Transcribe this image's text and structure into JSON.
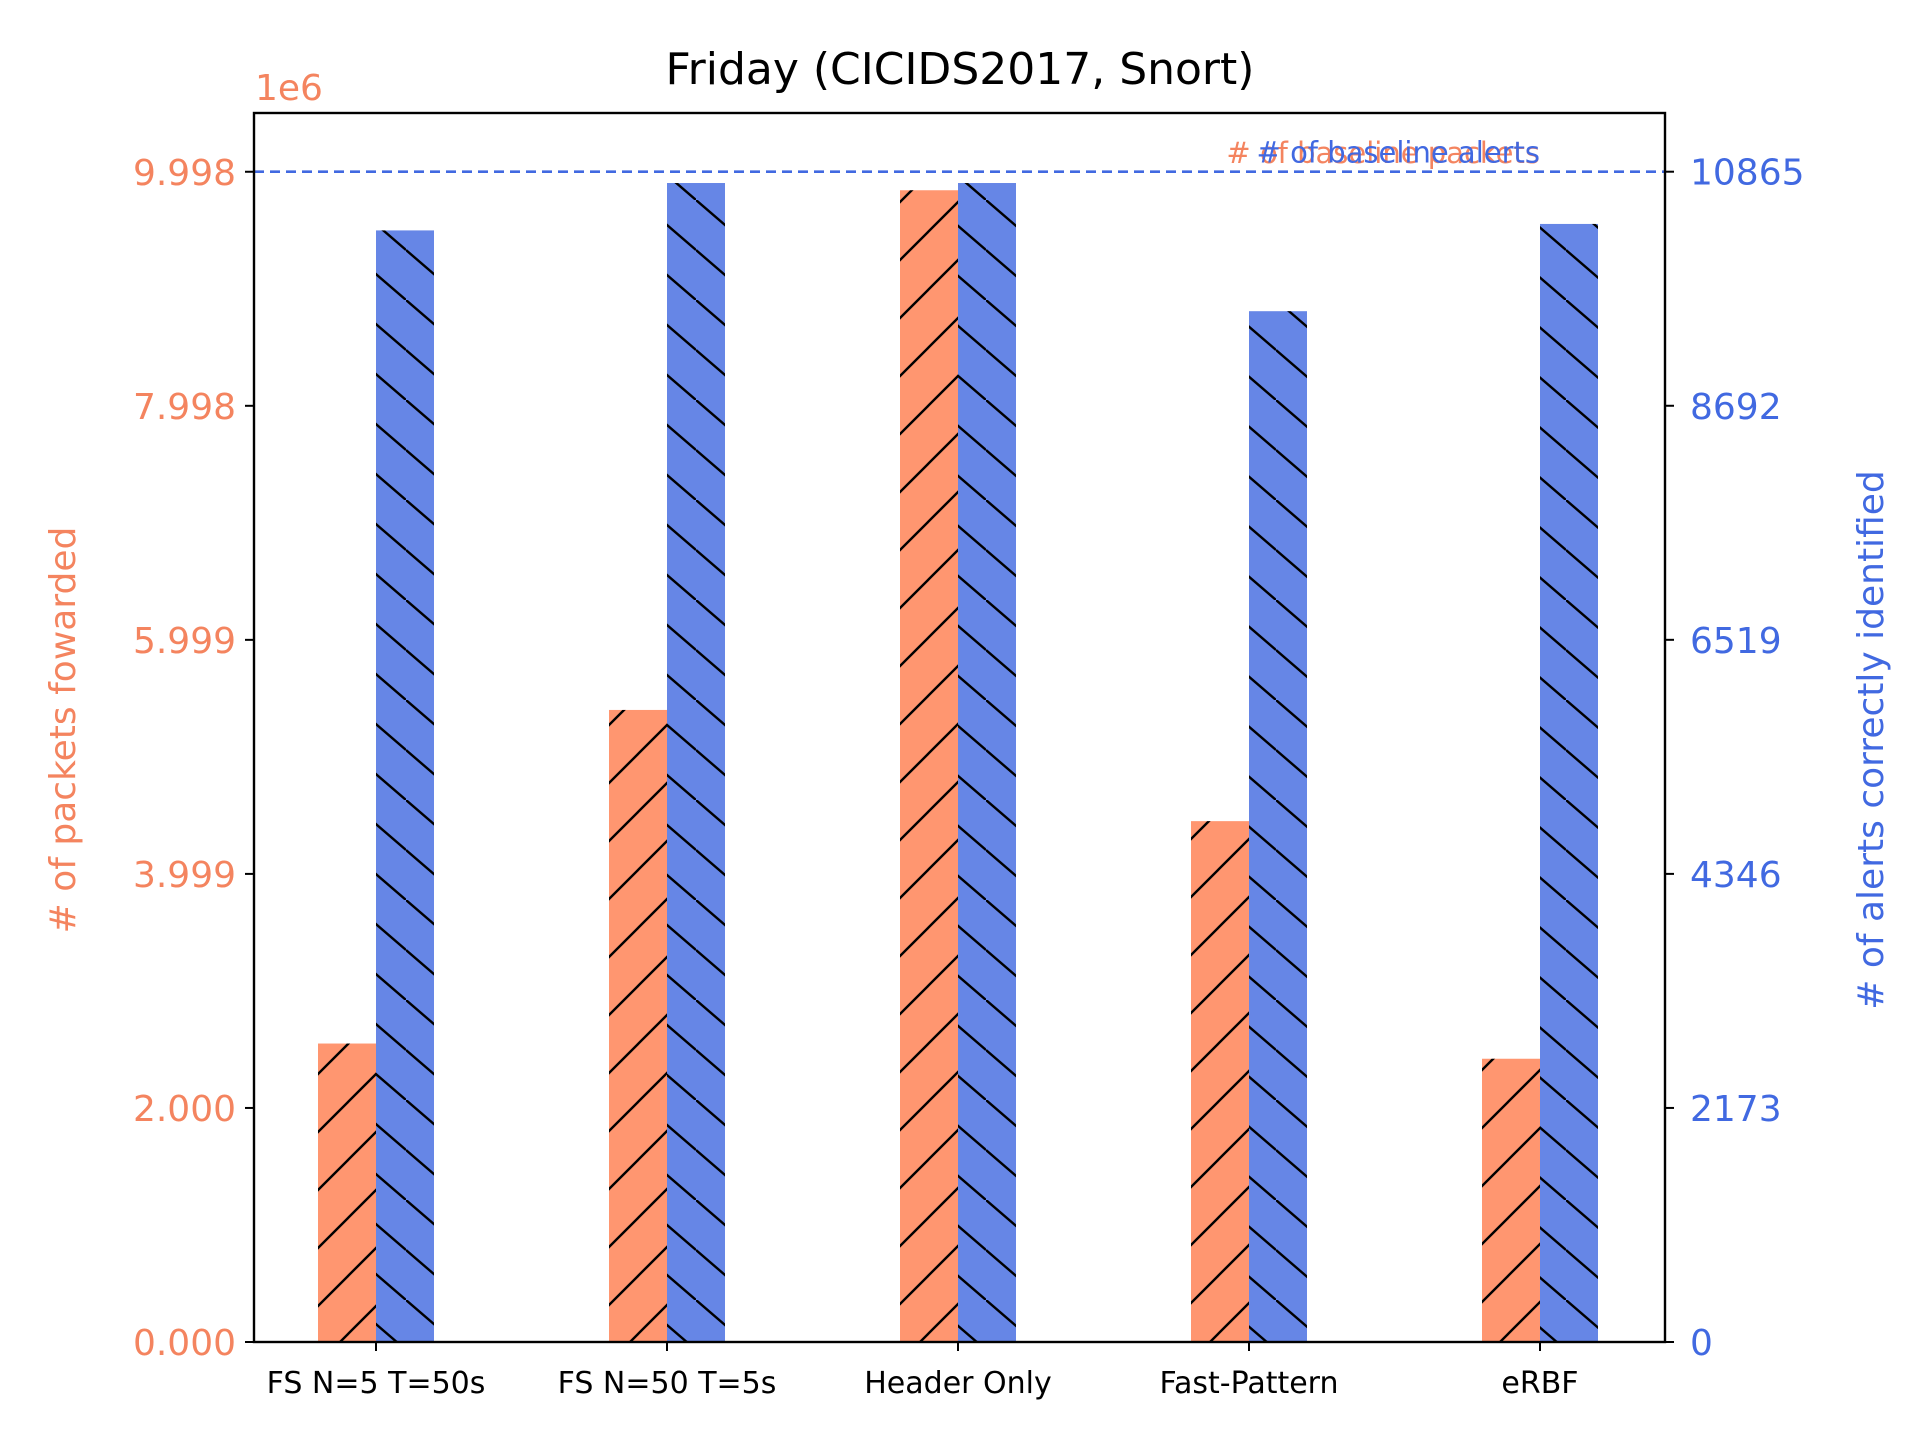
{
  "chart_data": {
    "type": "bar",
    "title": "Friday (CICIDS2017, Snort)",
    "categories": [
      "FS N=5 T=50s",
      "FS N=50 T=5s",
      "Header Only",
      "Fast-Pattern",
      "eRBF"
    ],
    "series": [
      {
        "name": "# of packets fowarded",
        "axis": "left",
        "color": "#ff9670",
        "hatch": "forward-diagonal",
        "values": [
          2550000,
          5400000,
          9840000,
          4450000,
          2420000
        ]
      },
      {
        "name": "# of alerts correctly identified",
        "axis": "right",
        "color": "#6686e6",
        "hatch": "back-diagonal",
        "values": [
          10320,
          10760,
          10760,
          9570,
          10380
        ]
      }
    ],
    "left_axis": {
      "label": "# of packets fowarded",
      "offset_label": "1e6",
      "ticks": [
        0,
        1999600,
        3999200,
        5998800,
        7998400,
        9998000
      ],
      "tick_labels": [
        "0.000",
        "2.000",
        "3.999",
        "5.999",
        "7.998",
        "9.998"
      ],
      "ylim": [
        0,
        10500000
      ],
      "color": "#f4845f"
    },
    "right_axis": {
      "label": "# of alerts correctly identified",
      "ticks": [
        0,
        2173,
        4346,
        6519,
        8692,
        10865
      ],
      "tick_labels": [
        "0",
        "2173",
        "4346",
        "6519",
        "8692",
        "10865"
      ],
      "ylim": [
        0,
        11410
      ],
      "color": "#4169e1"
    },
    "reference_lines": [
      {
        "label": "# of baseline packets",
        "axis": "left",
        "value": 9998000,
        "color": "#f4845f"
      },
      {
        "label": "# of baseline alerts",
        "axis": "right",
        "value": 10865,
        "color": "#4169e1"
      }
    ],
    "grid": false
  }
}
